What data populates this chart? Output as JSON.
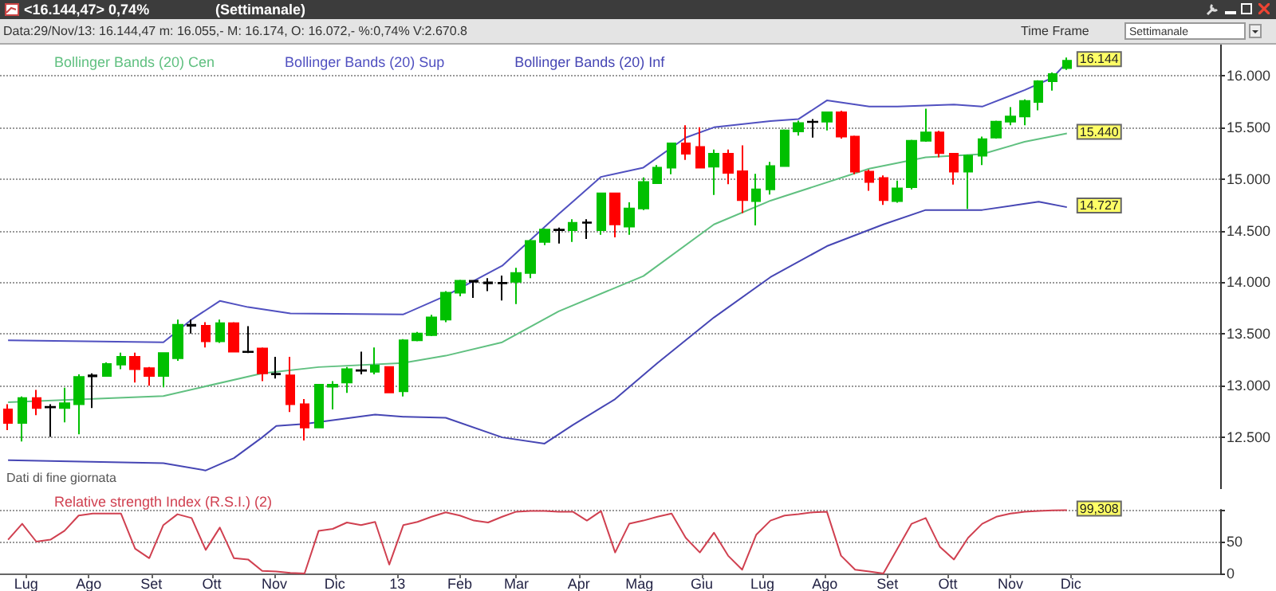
{
  "chart_data": [
    {
      "type": "candlestick",
      "title": "<16.144,47> 0,74%",
      "subtitle": "(Settimanale)",
      "annotations": [
        "Data:29/Nov/13: 16.144,47 m: 16.055,- M: 16.174, O: 16.072,- %:0,74% V:2.670.8",
        "Time Frame",
        "Settimanale",
        "Dati di fine giornata",
        {
          "text": "16.144",
          "x": "2013-11-29",
          "y": 16144.47
        },
        {
          "text": "15.440",
          "x": "2013-11-29",
          "y": 15440
        },
        {
          "text": "14.727",
          "x": "2013-11-29",
          "y": 14727
        }
      ],
      "x": [
        "2012-06-22",
        "2012-06-29",
        "2012-07-06",
        "2012-07-13",
        "2012-07-20",
        "2012-07-27",
        "2012-08-03",
        "2012-08-10",
        "2012-08-17",
        "2012-08-24",
        "2012-08-31",
        "2012-09-07",
        "2012-09-14",
        "2012-09-21",
        "2012-09-28",
        "2012-10-05",
        "2012-10-12",
        "2012-10-19",
        "2012-10-26",
        "2012-11-02",
        "2012-11-09",
        "2012-11-16",
        "2012-11-23",
        "2012-11-30",
        "2012-12-07",
        "2012-12-14",
        "2012-12-21",
        "2012-12-28",
        "2013-01-04",
        "2013-01-11",
        "2013-01-18",
        "2013-01-25",
        "2013-02-01",
        "2013-02-08",
        "2013-02-15",
        "2013-02-22",
        "2013-03-01",
        "2013-03-08",
        "2013-03-15",
        "2013-03-22",
        "2013-03-29",
        "2013-04-05",
        "2013-04-12",
        "2013-04-19",
        "2013-04-26",
        "2013-05-03",
        "2013-05-10",
        "2013-05-17",
        "2013-05-24",
        "2013-05-31",
        "2013-06-07",
        "2013-06-14",
        "2013-06-21",
        "2013-06-28",
        "2013-07-05",
        "2013-07-12",
        "2013-07-19",
        "2013-07-26",
        "2013-08-02",
        "2013-08-09",
        "2013-08-16",
        "2013-08-23",
        "2013-08-30",
        "2013-09-06",
        "2013-09-13",
        "2013-09-20",
        "2013-09-27",
        "2013-10-04",
        "2013-10-11",
        "2013-10-18",
        "2013-10-25",
        "2013-11-01",
        "2013-11-08",
        "2013-11-15",
        "2013-11-22",
        "2013-11-29"
      ],
      "ohlc": [
        [
          12770,
          12820,
          12570,
          12640
        ],
        [
          12640,
          12895,
          12460,
          12880
        ],
        [
          12880,
          12960,
          12715,
          12785
        ],
        [
          12790,
          12820,
          12505,
          12795
        ],
        [
          12785,
          12980,
          12645,
          12830
        ],
        [
          12820,
          13110,
          12530,
          13085
        ],
        [
          13090,
          13120,
          12785,
          13100
        ],
        [
          13095,
          13225,
          13090,
          13210
        ],
        [
          13205,
          13320,
          13160,
          13280
        ],
        [
          13280,
          13320,
          13030,
          13160
        ],
        [
          13170,
          13180,
          13000,
          13095
        ],
        [
          13095,
          13315,
          12985,
          13315
        ],
        [
          13265,
          13640,
          13240,
          13590
        ],
        [
          13580,
          13640,
          13505,
          13590
        ],
        [
          13580,
          13615,
          13370,
          13430
        ],
        [
          13430,
          13640,
          13415,
          13605
        ],
        [
          13605,
          13615,
          13325,
          13330
        ],
        [
          13330,
          13575,
          13315,
          13325
        ],
        [
          13360,
          13370,
          13045,
          13120
        ],
        [
          13115,
          13280,
          13070,
          13110
        ],
        [
          13100,
          13280,
          12745,
          12820
        ],
        [
          12820,
          12870,
          12470,
          12595
        ],
        [
          12595,
          13015,
          12595,
          13010
        ],
        [
          12990,
          13045,
          12770,
          13010
        ],
        [
          13030,
          13180,
          12930,
          13160
        ],
        [
          13145,
          13330,
          13110,
          13150
        ],
        [
          13135,
          13370,
          13110,
          13195
        ],
        [
          13180,
          13180,
          12935,
          12935
        ],
        [
          12945,
          13450,
          12895,
          13440
        ],
        [
          13440,
          13520,
          13430,
          13505
        ],
        [
          13490,
          13685,
          13480,
          13660
        ],
        [
          13640,
          13915,
          13615,
          13900
        ],
        [
          13900,
          14025,
          13865,
          14015
        ],
        [
          14015,
          14015,
          13850,
          14005
        ],
        [
          14000,
          14040,
          13915,
          13990
        ],
        [
          13990,
          14065,
          13825,
          13995
        ],
        [
          14005,
          14140,
          13790,
          14090
        ],
        [
          14090,
          14415,
          14040,
          14400
        ],
        [
          14390,
          14520,
          14360,
          14510
        ],
        [
          14505,
          14530,
          14375,
          14510
        ],
        [
          14505,
          14610,
          14390,
          14575
        ],
        [
          14575,
          14610,
          14420,
          14580
        ],
        [
          14505,
          14865,
          14460,
          14860
        ],
        [
          14860,
          14860,
          14435,
          14560
        ],
        [
          14540,
          14775,
          14460,
          14715
        ],
        [
          14715,
          15015,
          14700,
          14970
        ],
        [
          14960,
          15135,
          14955,
          15110
        ],
        [
          15110,
          15345,
          15045,
          15345
        ],
        [
          15345,
          15520,
          15185,
          15245
        ],
        [
          15310,
          15500,
          15110,
          15110
        ],
        [
          15120,
          15285,
          14845,
          15245
        ],
        [
          15245,
          15285,
          14950,
          15060
        ],
        [
          15075,
          15325,
          14670,
          14795
        ],
        [
          14785,
          15050,
          14550,
          14900
        ],
        [
          14900,
          15165,
          14850,
          15125
        ],
        [
          15125,
          15480,
          15125,
          15470
        ],
        [
          15460,
          15565,
          15420,
          15540
        ],
        [
          15550,
          15580,
          15400,
          15555
        ],
        [
          15555,
          15645,
          15470,
          15645
        ],
        [
          15645,
          15660,
          15390,
          15410
        ],
        [
          15410,
          15420,
          15045,
          15070
        ],
        [
          15070,
          15090,
          14885,
          14970
        ],
        [
          15010,
          15035,
          14750,
          14795
        ],
        [
          14785,
          14985,
          14770,
          14910
        ],
        [
          14920,
          15380,
          14900,
          15370
        ],
        [
          15370,
          15680,
          15360,
          15450
        ],
        [
          15450,
          15465,
          15210,
          15250
        ],
        [
          15245,
          15245,
          14945,
          15070
        ],
        [
          15070,
          15235,
          14710,
          15225
        ],
        [
          15225,
          15410,
          15135,
          15385
        ],
        [
          15400,
          15565,
          15390,
          15555
        ],
        [
          15555,
          15695,
          15520,
          15605
        ],
        [
          15605,
          15770,
          15520,
          15755
        ],
        [
          15745,
          15955,
          15665,
          15945
        ],
        [
          15945,
          16030,
          15855,
          16015
        ],
        [
          16072,
          16174,
          16055,
          16144.47
        ]
      ],
      "colors": [
        "#ff0000",
        "#00c000",
        "#ff0000",
        "#000000",
        "#00c000",
        "#00c000",
        "#000000",
        "#00c000",
        "#00c000",
        "#ff0000",
        "#ff0000",
        "#00c000",
        "#00c000",
        "#000000",
        "#ff0000",
        "#00c000",
        "#ff0000",
        "#000000",
        "#ff0000",
        "#000000",
        "#ff0000",
        "#ff0000",
        "#00c000",
        "#00c000",
        "#00c000",
        "#000000",
        "#00c000",
        "#ff0000",
        "#00c000",
        "#00c000",
        "#00c000",
        "#00c000",
        "#00c000",
        "#000000",
        "#000000",
        "#000000",
        "#00c000",
        "#00c000",
        "#00c000",
        "#000000",
        "#00c000",
        "#000000",
        "#00c000",
        "#ff0000",
        "#00c000",
        "#00c000",
        "#00c000",
        "#00c000",
        "#ff0000",
        "#ff0000",
        "#00c000",
        "#ff0000",
        "#ff0000",
        "#00c000",
        "#00c000",
        "#00c000",
        "#00c000",
        "#000000",
        "#00c000",
        "#ff0000",
        "#ff0000",
        "#ff0000",
        "#ff0000",
        "#00c000",
        "#00c000",
        "#00c000",
        "#ff0000",
        "#ff0000",
        "#00c000",
        "#00c000",
        "#00c000",
        "#00c000",
        "#00c000",
        "#00c000",
        "#00c000",
        "#00c000"
      ],
      "series": [
        {
          "name": "Bollinger Bands (20) Cen",
          "type": "line",
          "color": "#60c080",
          "x": [
            "2012-06-22",
            "2012-09-07",
            "2012-10-26",
            "2012-11-23",
            "2013-01-04",
            "2013-01-25",
            "2013-02-22",
            "2013-03-22",
            "2013-05-03",
            "2013-06-07",
            "2013-07-05",
            "2013-08-23",
            "2013-09-20",
            "2013-10-18",
            "2013-11-08",
            "2013-11-29"
          ],
          "values": [
            12840,
            12900,
            13120,
            13180,
            13220,
            13290,
            13420,
            13720,
            14060,
            14560,
            14790,
            15100,
            15210,
            15240,
            15360,
            15440
          ]
        },
        {
          "name": "Bollinger Bands (20) Sup",
          "type": "line",
          "color": "#5050c0",
          "x": [
            "2012-06-22",
            "2012-09-07",
            "2012-09-21",
            "2012-10-05",
            "2012-10-19",
            "2012-11-09",
            "2013-01-04",
            "2013-01-25",
            "2013-02-22",
            "2013-03-22",
            "2013-04-12",
            "2013-05-03",
            "2013-05-24",
            "2013-06-07",
            "2013-07-05",
            "2013-07-19",
            "2013-08-02",
            "2013-08-23",
            "2013-09-06",
            "2013-10-04",
            "2013-10-18",
            "2013-11-08",
            "2013-11-22",
            "2013-11-29"
          ],
          "values": [
            13440,
            13420,
            13640,
            13820,
            13760,
            13700,
            13690,
            13870,
            14160,
            14660,
            15020,
            15110,
            15400,
            15500,
            15560,
            15580,
            15760,
            15700,
            15700,
            15720,
            15700,
            15860,
            15980,
            16130
          ]
        },
        {
          "name": "Bollinger Bands (20) Inf",
          "type": "line",
          "color": "#4646b4",
          "x": [
            "2012-06-22",
            "2012-09-07",
            "2012-09-28",
            "2012-10-12",
            "2012-10-26",
            "2012-11-02",
            "2012-11-16",
            "2012-12-21",
            "2013-01-04",
            "2013-01-25",
            "2013-02-22",
            "2013-03-15",
            "2013-03-29",
            "2013-04-19",
            "2013-05-10",
            "2013-06-07",
            "2013-07-05",
            "2013-08-02",
            "2013-08-30",
            "2013-09-20",
            "2013-10-18",
            "2013-11-15",
            "2013-11-29"
          ],
          "values": [
            12280,
            12250,
            12180,
            12300,
            12500,
            12610,
            12630,
            12720,
            12700,
            12690,
            12500,
            12440,
            12620,
            12870,
            13220,
            13660,
            14050,
            14350,
            14560,
            14700,
            14700,
            14780,
            14727
          ]
        }
      ],
      "xlim": [
        "2012-06-18",
        "2014-02-13"
      ],
      "ylim": [
        12000,
        16300
      ],
      "yticks": [
        {
          "value": 12500,
          "label": "12.500"
        },
        {
          "value": 13000,
          "label": "13.000"
        },
        {
          "value": 13500,
          "label": "13.500"
        },
        {
          "value": 14000,
          "label": "14.000"
        },
        {
          "value": 14500,
          "label": "14.500"
        },
        {
          "value": 15000,
          "label": "15.000"
        },
        {
          "value": 15500,
          "label": "15.500"
        },
        {
          "value": 16000,
          "label": "16.000"
        }
      ],
      "tick_labels": "y",
      "grid": "y",
      "legend": "top left",
      "marker": "none",
      "line_style": "solid"
    },
    {
      "type": "line",
      "annotations": [
        {
          "text": "99,308",
          "x": "2013-11-29",
          "y": 99.308
        }
      ],
      "x": [
        "2012-06-22",
        "2012-06-29",
        "2012-07-06",
        "2012-07-13",
        "2012-07-20",
        "2012-07-27",
        "2012-08-03",
        "2012-08-10",
        "2012-08-17",
        "2012-08-24",
        "2012-08-31",
        "2012-09-07",
        "2012-09-14",
        "2012-09-21",
        "2012-09-28",
        "2012-10-05",
        "2012-10-12",
        "2012-10-19",
        "2012-10-26",
        "2012-11-02",
        "2012-11-09",
        "2012-11-16",
        "2012-11-23",
        "2012-11-30",
        "2012-12-07",
        "2012-12-14",
        "2012-12-21",
        "2012-12-28",
        "2013-01-04",
        "2013-01-11",
        "2013-01-18",
        "2013-01-25",
        "2013-02-01",
        "2013-02-08",
        "2013-02-15",
        "2013-02-22",
        "2013-03-01",
        "2013-03-08",
        "2013-03-15",
        "2013-03-22",
        "2013-03-29",
        "2013-04-05",
        "2013-04-12",
        "2013-04-19",
        "2013-04-26",
        "2013-05-03",
        "2013-05-10",
        "2013-05-17",
        "2013-05-24",
        "2013-05-31",
        "2013-06-07",
        "2013-06-14",
        "2013-06-21",
        "2013-06-28",
        "2013-07-05",
        "2013-07-12",
        "2013-07-19",
        "2013-07-26",
        "2013-08-02",
        "2013-08-09",
        "2013-08-16",
        "2013-08-23",
        "2013-08-30",
        "2013-09-06",
        "2013-09-13",
        "2013-09-20",
        "2013-09-27",
        "2013-10-04",
        "2013-10-11",
        "2013-10-18",
        "2013-10-25",
        "2013-11-01",
        "2013-11-08",
        "2013-11-15",
        "2013-11-22",
        "2013-11-29"
      ],
      "series": [
        {
          "name": "Relative strength Index (R.S.I.) (2)",
          "color": "#d04050",
          "values": [
            53,
            78,
            50,
            53,
            67,
            91,
            94,
            94,
            94,
            39,
            24,
            76,
            93,
            87,
            37,
            72,
            24,
            22,
            4,
            3,
            1,
            0,
            67,
            70,
            80,
            76,
            81,
            14,
            76,
            81,
            89,
            96,
            91,
            83,
            80,
            89,
            97,
            98,
            98,
            97,
            97,
            83,
            98,
            33,
            78,
            83,
            89,
            94,
            56,
            33,
            64,
            28,
            6,
            61,
            83,
            91,
            93,
            96,
            97,
            28,
            6,
            3,
            0,
            39,
            78,
            87,
            42,
            22,
            56,
            78,
            89,
            94,
            97,
            98,
            99,
            99.308
          ]
        }
      ],
      "xlim": [
        "2012-06-18",
        "2014-02-13"
      ],
      "ylim": [
        0,
        100
      ],
      "yticks": [
        0,
        50,
        {
          "value": 100,
          "label": null
        }
      ],
      "xticks": [
        {
          "value": "2012-07-01",
          "label": "Lug"
        },
        {
          "value": "2012-08-01",
          "label": "Ago"
        },
        {
          "value": "2012-09-01",
          "label": "Set"
        },
        {
          "value": "2012-10-01",
          "label": "Ott"
        },
        {
          "value": "2012-11-01",
          "label": "Nov"
        },
        {
          "value": "2012-12-01",
          "label": "Dic"
        },
        {
          "value": "2013-01-01",
          "label": "13"
        },
        {
          "value": "2013-02-01",
          "label": "Feb"
        },
        {
          "value": "2013-03-01",
          "label": "Mar"
        },
        {
          "value": "2013-04-01",
          "label": "Apr"
        },
        {
          "value": "2013-05-01",
          "label": "Mag"
        },
        {
          "value": "2013-06-01",
          "label": "Giu"
        },
        {
          "value": "2013-07-01",
          "label": "Lug"
        },
        {
          "value": "2013-08-01",
          "label": "Ago"
        },
        {
          "value": "2013-09-01",
          "label": "Set"
        },
        {
          "value": "2013-10-01",
          "label": "Ott"
        },
        {
          "value": "2013-11-01",
          "label": "Nov"
        },
        {
          "value": "2013-12-01",
          "label": "Dic"
        }
      ],
      "grid": "y",
      "legend": "top left",
      "marker": "none",
      "line_style": "solid"
    }
  ]
}
